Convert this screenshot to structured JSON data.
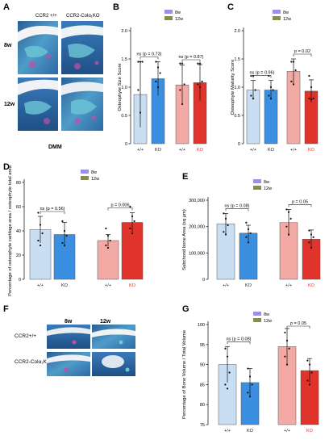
{
  "panels": {
    "A": {
      "letter": "A",
      "col_labels": [
        "CCR2 +/+",
        "CCR2-Colα₁KO"
      ],
      "row_labels": [
        "8w",
        "12w"
      ],
      "caption": "DMM"
    },
    "F": {
      "letter": "F",
      "col_labels": [
        "8w",
        "12w"
      ],
      "row_labels": [
        "CCR2+/+",
        "CCR2-Colα₁KO"
      ]
    }
  },
  "colors": {
    "bar_8w_wt": "#c9def2",
    "bar_8w_ko": "#3b8fe0",
    "bar_12w_wt": "#f3a9a4",
    "bar_12w_ko": "#e0332b",
    "legend_8w": "#9b8fe6",
    "legend_12w": "#8a8a55",
    "tissue_blue": "#3a76b0",
    "tissue_cyan": "#6dc7d6",
    "tissue_magenta": "#c24fa6"
  },
  "chart_data": [
    {
      "id": "B",
      "letter": "B",
      "type": "bar",
      "ylabel": "Osteophyte Size Score",
      "ylim": [
        0,
        2
      ],
      "yticks": [
        0,
        0.5,
        1,
        1.5,
        2
      ],
      "yticklabels": [
        "0",
        "0.5",
        "1.0",
        "1.5",
        "2.0"
      ],
      "legend": [
        "8w",
        "12w"
      ],
      "categories": [
        "+/+",
        "KO",
        "+/+",
        "KO"
      ],
      "values": [
        0.87,
        1.15,
        1.04,
        1.08
      ],
      "errors": [
        0.58,
        0.3,
        0.35,
        0.32
      ],
      "points": [
        [
          1.45,
          1.45,
          1.45,
          0.95,
          0.55
        ],
        [
          1.45,
          1.35,
          1.25,
          1.1,
          1.0
        ],
        [
          1.42,
          1.42,
          1.05,
          0.95,
          0.7
        ],
        [
          1.42,
          1.42,
          1.1,
          1.05,
          1.0
        ]
      ],
      "annotations": [
        {
          "text": "ns (p = 0.73)",
          "span": [
            0,
            1
          ]
        },
        {
          "text": "ns (p = 0.87)",
          "span": [
            2,
            3
          ]
        }
      ]
    },
    {
      "id": "C",
      "letter": "C",
      "type": "bar",
      "ylabel": "Osteophyte Maturity Score",
      "ylim": [
        0,
        2
      ],
      "yticks": [
        0,
        0.5,
        1,
        1.5,
        2
      ],
      "yticklabels": [
        "0",
        "0.5",
        "1.0",
        "1.5",
        "2.0"
      ],
      "legend": [
        "8w",
        "12w"
      ],
      "categories": [
        "+/+",
        "KO",
        "+/+",
        "KO"
      ],
      "values": [
        0.95,
        0.95,
        1.28,
        0.93
      ],
      "errors": [
        0.17,
        0.17,
        0.22,
        0.2
      ],
      "points": [
        [
          1.2,
          1.2,
          0.95,
          0.85,
          0.8
        ],
        [
          1.2,
          1.0,
          0.95,
          0.85,
          0.8
        ],
        [
          1.45,
          1.45,
          1.3,
          1.1,
          1.05
        ],
        [
          1.2,
          1.0,
          0.8,
          0.8,
          0.78
        ]
      ],
      "annotations": [
        {
          "text": "ns (p = 0.96)",
          "span": [
            0,
            1
          ]
        },
        {
          "text": "p = 0.02",
          "span": [
            2,
            3
          ]
        }
      ]
    },
    {
      "id": "D",
      "letter": "D",
      "type": "bar",
      "ylabel": "Percentage of osteophyte cartilage area / osteophyte total area",
      "ylim": [
        0,
        80
      ],
      "yticks": [
        0,
        20,
        40,
        60,
        80
      ],
      "yticklabels": [
        "0",
        "20",
        "40",
        "60",
        "80"
      ],
      "legend": [
        "8w",
        "12w"
      ],
      "categories": [
        "+/+",
        "KO",
        "+/+",
        "KO"
      ],
      "values": [
        41,
        37,
        32,
        47
      ],
      "errors": [
        11,
        10,
        5,
        8
      ],
      "points": [
        [
          55,
          45,
          38,
          32,
          28
        ],
        [
          48,
          40,
          36,
          30,
          28
        ],
        [
          42,
          36,
          32,
          28,
          26
        ],
        [
          60,
          52,
          48,
          42,
          38
        ]
      ],
      "annotations": [
        {
          "text": "ns (p = 0.56)",
          "span": [
            0,
            1
          ]
        },
        {
          "text": "p = 0.006",
          "span": [
            2,
            3
          ]
        }
      ]
    },
    {
      "id": "E",
      "letter": "E",
      "type": "bar",
      "ylabel": "Subchond bone  Area (sq µm)",
      "ylim": [
        0,
        300000
      ],
      "yticks": [
        0,
        100000,
        200000,
        300000
      ],
      "yticklabels": [
        "0",
        "100,000",
        "200,000",
        "300,000"
      ],
      "legend": [
        "8w",
        "12w"
      ],
      "categories": [
        "+/+",
        "KO",
        "+/+",
        "KO"
      ],
      "values": [
        210000,
        175000,
        215000,
        152000
      ],
      "errors": [
        40000,
        30000,
        50000,
        35000
      ],
      "points": [
        [
          250000,
          230000,
          205000,
          180000,
          170000
        ],
        [
          215000,
          190000,
          175000,
          160000,
          140000
        ],
        [
          265000,
          255000,
          230000,
          200000,
          170000
        ],
        [
          185000,
          170000,
          160000,
          140000,
          120000
        ]
      ],
      "annotations": [
        {
          "text": "ns (p = 0.08)",
          "span": [
            0,
            1
          ]
        },
        {
          "text": "p = 0.05",
          "span": [
            2,
            3
          ]
        }
      ]
    },
    {
      "id": "G",
      "letter": "G",
      "type": "bar",
      "ylabel": "Percentage of Bone Volume / Total  Volume",
      "ylim": [
        75,
        100
      ],
      "yticks": [
        75,
        80,
        85,
        90,
        95,
        100
      ],
      "yticklabels": [
        "75",
        "80",
        "85",
        "90",
        "95",
        "100"
      ],
      "legend": [
        "8w",
        "12w"
      ],
      "categories": [
        "+/+",
        "KO",
        "+/+",
        "KO"
      ],
      "values": [
        90,
        85.5,
        94.5,
        88.5
      ],
      "errors": [
        4.5,
        3.5,
        4.5,
        3
      ],
      "points": [
        [
          94,
          92,
          88,
          85,
          84
        ],
        [
          89,
          87,
          85,
          83,
          82
        ],
        [
          98,
          96,
          94,
          92,
          90
        ],
        [
          91,
          90,
          88,
          86,
          85
        ]
      ],
      "annotations": [
        {
          "text": "ns (p = 0.08)",
          "span": [
            0,
            1
          ]
        },
        {
          "text": "p = 0.05",
          "span": [
            2,
            3
          ]
        }
      ]
    }
  ]
}
